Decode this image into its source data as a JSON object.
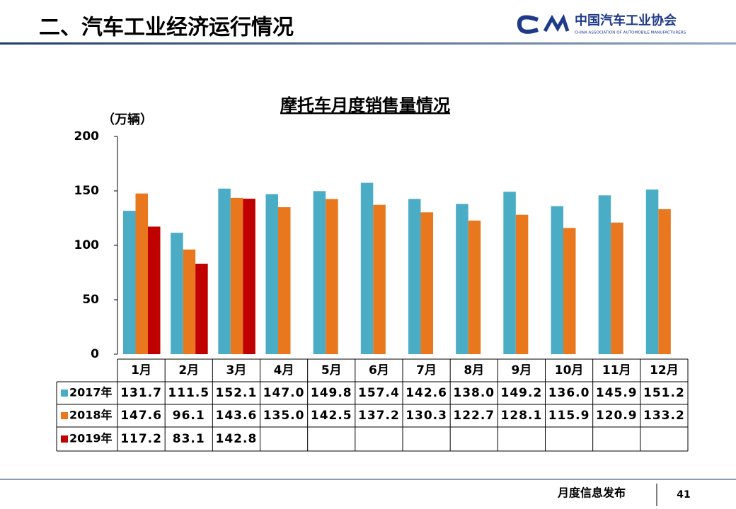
{
  "header": {
    "title": "二、汽车工业经济运行情况",
    "logo_name": "中国汽车工业协会",
    "logo_subtitle": "CHINA ASSOCIATION OF AUTOMOBILE MANUFACTURERS"
  },
  "footer": {
    "text": "月度信息发布",
    "page": "41"
  },
  "chart_data": {
    "type": "bar",
    "title": "摩托车月度销售量情况",
    "y_label": "（万辆）",
    "categories": [
      "1月",
      "2月",
      "3月",
      "4月",
      "5月",
      "6月",
      "7月",
      "8月",
      "9月",
      "10月",
      "11月",
      "12月"
    ],
    "series": [
      {
        "name": "2017年",
        "color": "#4bacc6",
        "values": [
          131.7,
          111.5,
          152.1,
          147.0,
          149.8,
          157.4,
          142.6,
          138.0,
          149.2,
          136.0,
          145.9,
          151.2
        ],
        "value_labels": [
          "131.7",
          "111.5",
          "152.1",
          "147.0",
          "149.8",
          "157.4",
          "142.6",
          "138.0",
          "149.2",
          "136.0",
          "145.9",
          "151.2"
        ]
      },
      {
        "name": "2018年",
        "color": "#e8771e",
        "values": [
          147.6,
          96.1,
          143.6,
          135.0,
          142.5,
          137.2,
          130.3,
          122.7,
          128.1,
          115.9,
          120.9,
          133.2
        ],
        "value_labels": [
          "147.6",
          "96.1",
          "143.6",
          "135.0",
          "142.5",
          "137.2",
          "130.3",
          "122.7",
          "128.1",
          "115.9",
          "120.9",
          "133.2"
        ]
      },
      {
        "name": "2019年",
        "color": "#c00000",
        "values": [
          117.2,
          83.1,
          142.8,
          null,
          null,
          null,
          null,
          null,
          null,
          null,
          null,
          null
        ],
        "value_labels": [
          "117.2",
          "83.1",
          "142.8",
          null,
          null,
          null,
          null,
          null,
          null,
          null,
          null,
          null
        ]
      }
    ],
    "ylim": [
      0,
      200
    ],
    "yticks": [
      0,
      50,
      100,
      150,
      200
    ],
    "grid": false
  }
}
